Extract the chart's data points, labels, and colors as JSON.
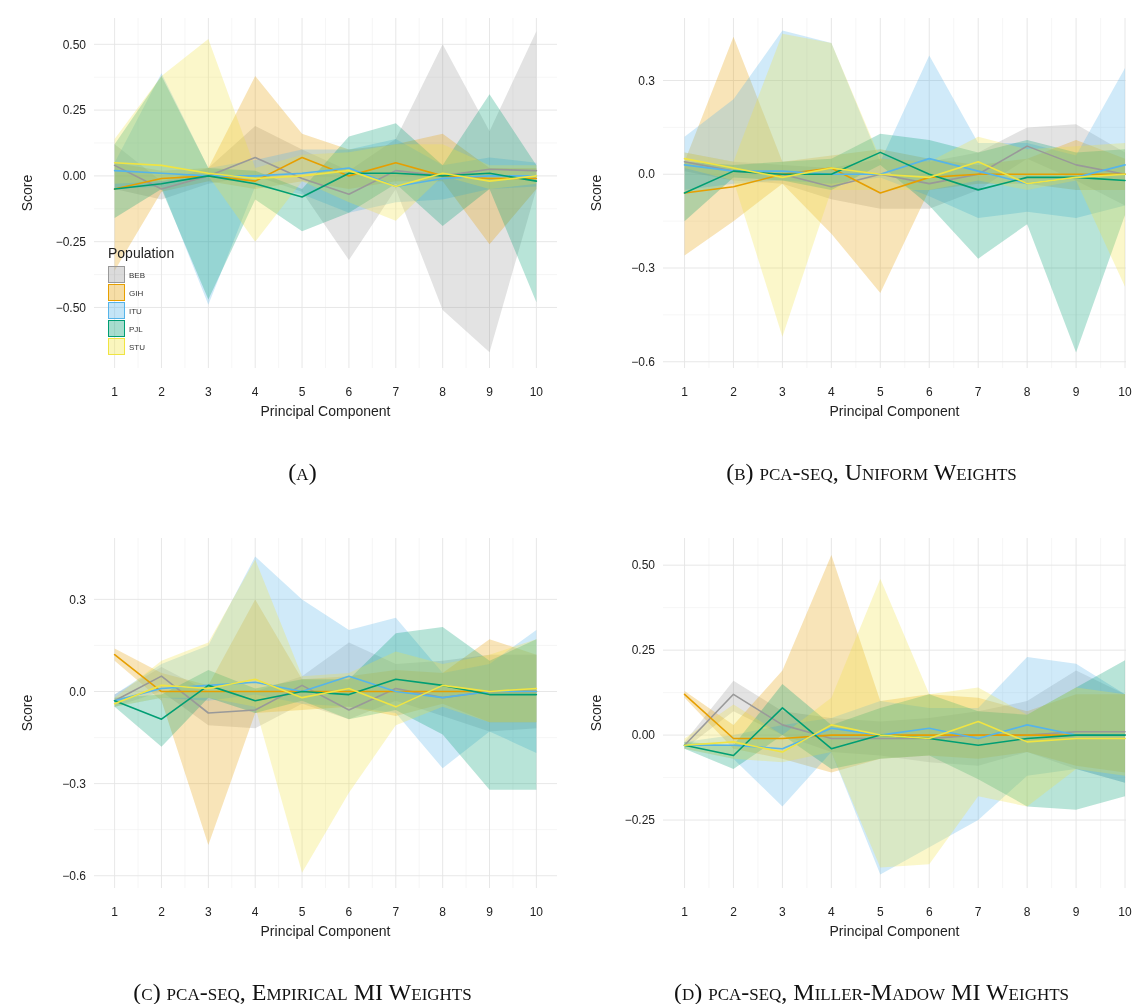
{
  "chart_data": [
    {
      "type": "line",
      "title": "(a)",
      "xlabel": "Principal Component",
      "ylabel": "Score",
      "legend_title": "Population",
      "legend": "bottom left",
      "grid": true,
      "x": [
        1,
        2,
        3,
        4,
        5,
        6,
        7,
        8,
        9,
        10
      ],
      "xlim": [
        0.56,
        10.44
      ],
      "xticks": [
        1,
        2,
        3,
        4,
        5,
        6,
        7,
        8,
        9,
        10
      ],
      "ylim": [
        -0.73,
        0.6
      ],
      "yticks": [
        {
          "value": -0.5,
          "label": "−0.50"
        },
        {
          "value": -0.25,
          "label": "−0.25"
        },
        {
          "value": 0,
          "label": "0.00"
        },
        {
          "value": 0.25,
          "label": "0.25"
        },
        {
          "value": 0.5,
          "label": "0.50"
        }
      ],
      "series": [
        {
          "name": "BEB",
          "color": "#999999",
          "values": [
            0.04,
            -0.05,
            0.0,
            0.07,
            -0.01,
            -0.07,
            0.02,
            0.0,
            0.025,
            0.02
          ],
          "lower": [
            -0.05,
            -0.09,
            -0.03,
            0.0,
            -0.06,
            -0.32,
            -0.05,
            -0.51,
            -0.67,
            -0.05
          ],
          "upper": [
            0.12,
            -0.02,
            0.03,
            0.19,
            0.1,
            0.02,
            0.14,
            0.5,
            0.17,
            0.55
          ]
        },
        {
          "name": "GIH",
          "color": "#e69f00",
          "values": [
            -0.05,
            -0.01,
            0.0,
            -0.02,
            0.07,
            0.0,
            0.05,
            0.0,
            -0.01,
            -0.01
          ],
          "lower": [
            -0.36,
            -0.06,
            -0.02,
            -0.05,
            -0.02,
            -0.05,
            -0.02,
            -0.02,
            -0.26,
            -0.05
          ],
          "upper": [
            0.05,
            0.02,
            0.03,
            0.38,
            0.16,
            0.1,
            0.12,
            0.16,
            0.03,
            0.03
          ]
        },
        {
          "name": "ITU",
          "color": "#56b4e9",
          "values": [
            0.02,
            0.01,
            0.0,
            0.0,
            0.01,
            0.03,
            -0.04,
            -0.01,
            0.0,
            0.0
          ],
          "lower": [
            -0.05,
            -0.04,
            -0.49,
            -0.04,
            -0.07,
            -0.14,
            -0.1,
            -0.09,
            -0.05,
            -0.04
          ],
          "upper": [
            0.05,
            0.39,
            0.03,
            0.06,
            0.1,
            0.1,
            0.14,
            0.04,
            0.07,
            0.05
          ]
        },
        {
          "name": "PJL",
          "color": "#009e73",
          "values": [
            -0.05,
            -0.03,
            0.0,
            -0.03,
            -0.08,
            0.01,
            0.01,
            0.0,
            0.01,
            -0.02
          ],
          "lower": [
            -0.16,
            -0.05,
            -0.47,
            -0.09,
            -0.21,
            -0.14,
            -0.03,
            -0.19,
            -0.05,
            -0.48
          ],
          "upper": [
            0.12,
            0.38,
            0.03,
            0.02,
            -0.05,
            0.15,
            0.2,
            0.04,
            0.31,
            0.04
          ]
        },
        {
          "name": "STU",
          "color": "#f0e442",
          "values": [
            0.05,
            0.04,
            0.01,
            -0.01,
            0.0,
            0.02,
            -0.04,
            0.01,
            -0.02,
            0.0
          ],
          "lower": [
            -0.03,
            -0.02,
            0.0,
            -0.25,
            -0.02,
            -0.1,
            -0.17,
            0.0,
            -0.05,
            -0.03
          ],
          "upper": [
            0.14,
            0.38,
            0.52,
            0.03,
            0.08,
            0.09,
            0.12,
            0.12,
            0.04,
            0.04
          ]
        }
      ]
    },
    {
      "type": "line",
      "title": "(b) pca-seq, Uniform Weights",
      "xlabel": "Principal Component",
      "ylabel": "Score",
      "grid": true,
      "x": [
        1,
        2,
        3,
        4,
        5,
        6,
        7,
        8,
        9,
        10
      ],
      "xlim": [
        0.56,
        10.02
      ],
      "xticks": [
        1,
        2,
        3,
        4,
        5,
        6,
        7,
        8,
        9,
        10
      ],
      "ylim": [
        -0.62,
        0.5
      ],
      "yticks": [
        {
          "value": -0.6,
          "label": "−0.6"
        },
        {
          "value": -0.3,
          "label": "−0.3"
        },
        {
          "value": 0,
          "label": "0.0"
        },
        0.3
      ],
      "series": [
        {
          "color": "#999999",
          "values": [
            0.04,
            0.01,
            0.0,
            -0.04,
            0.0,
            -0.03,
            0.0,
            0.09,
            0.03,
            0.0
          ],
          "lower": [
            0.01,
            -0.02,
            -0.03,
            -0.08,
            -0.11,
            -0.11,
            -0.05,
            0.05,
            -0.02,
            -0.1
          ],
          "upper": [
            0.07,
            0.04,
            0.03,
            0.02,
            0.05,
            0.04,
            0.07,
            0.15,
            0.16,
            0.07
          ]
        },
        {
          "color": "#e69f00",
          "values": [
            -0.06,
            -0.04,
            0.0,
            0.02,
            -0.06,
            -0.01,
            0.0,
            0.0,
            0.0,
            0.0
          ],
          "lower": [
            -0.26,
            -0.15,
            -0.03,
            -0.19,
            -0.38,
            -0.05,
            -0.03,
            -0.03,
            -0.05,
            -0.05
          ],
          "upper": [
            0.04,
            0.44,
            0.04,
            0.06,
            0.08,
            0.05,
            0.03,
            0.05,
            0.11,
            0.05
          ]
        },
        {
          "color": "#56b4e9",
          "values": [
            0.03,
            0.01,
            0.01,
            0.0,
            0.0,
            0.05,
            0.01,
            -0.03,
            -0.01,
            0.03
          ],
          "lower": [
            -0.05,
            -0.03,
            -0.02,
            -0.03,
            -0.01,
            -0.07,
            -0.14,
            -0.12,
            -0.14,
            -0.1
          ],
          "upper": [
            0.12,
            0.24,
            0.46,
            0.42,
            0.04,
            0.38,
            0.1,
            0.1,
            0.06,
            0.34
          ]
        },
        {
          "color": "#009e73",
          "values": [
            -0.06,
            0.01,
            0.0,
            0.0,
            0.07,
            0.0,
            -0.05,
            -0.01,
            -0.01,
            -0.02
          ],
          "lower": [
            -0.15,
            -0.01,
            -0.02,
            -0.05,
            0.03,
            -0.1,
            -0.27,
            -0.16,
            -0.57,
            -0.13
          ],
          "upper": [
            0.04,
            0.03,
            0.04,
            0.05,
            0.13,
            0.11,
            0.07,
            0.11,
            0.07,
            0.08
          ]
        },
        {
          "color": "#f0e442",
          "values": [
            0.05,
            0.02,
            -0.01,
            0.02,
            0.0,
            -0.01,
            0.04,
            -0.03,
            -0.01,
            0.0
          ],
          "lower": [
            0.02,
            -0.02,
            -0.52,
            -0.05,
            -0.05,
            -0.05,
            -0.02,
            -0.05,
            -0.02,
            -0.36
          ],
          "upper": [
            0.07,
            0.04,
            0.45,
            0.42,
            0.05,
            0.04,
            0.12,
            0.08,
            0.09,
            0.1
          ]
        }
      ]
    },
    {
      "type": "line",
      "title": "(c) pca-seq, Empirical MI Weights",
      "xlabel": "Principal Component",
      "ylabel": "Score",
      "grid": true,
      "x": [
        1,
        2,
        3,
        4,
        5,
        6,
        7,
        8,
        9,
        10
      ],
      "xlim": [
        0.56,
        10.44
      ],
      "xticks": [
        1,
        2,
        3,
        4,
        5,
        6,
        7,
        8,
        9,
        10
      ],
      "ylim": [
        -0.64,
        0.5
      ],
      "yticks": [
        {
          "value": -0.6,
          "label": "−0.6"
        },
        {
          "value": -0.3,
          "label": "−0.3"
        },
        {
          "value": 0,
          "label": "0.0"
        },
        0.3
      ],
      "series": [
        {
          "color": "#999999",
          "values": [
            -0.03,
            0.05,
            -0.07,
            -0.06,
            0.02,
            -0.06,
            0.01,
            -0.02,
            0.0,
            0.0
          ],
          "lower": [
            -0.05,
            0.0,
            -0.11,
            -0.12,
            -0.04,
            -0.09,
            -0.03,
            -0.08,
            -0.13,
            -0.12
          ],
          "upper": [
            -0.01,
            0.08,
            0.0,
            0.0,
            0.05,
            0.16,
            0.09,
            0.1,
            0.12,
            0.12
          ]
        },
        {
          "color": "#e69f00",
          "values": [
            0.12,
            0.0,
            0.0,
            0.0,
            0.0,
            0.0,
            0.0,
            0.0,
            0.0,
            0.0
          ],
          "lower": [
            0.1,
            -0.03,
            -0.5,
            -0.07,
            -0.06,
            -0.05,
            -0.08,
            -0.04,
            -0.1,
            -0.1
          ],
          "upper": [
            0.14,
            0.06,
            0.02,
            0.3,
            0.04,
            0.05,
            0.07,
            0.06,
            0.17,
            0.12
          ]
        },
        {
          "color": "#56b4e9",
          "values": [
            -0.03,
            0.01,
            0.02,
            0.03,
            0.0,
            0.05,
            0.0,
            -0.02,
            0.0,
            0.0
          ],
          "lower": [
            -0.05,
            -0.02,
            -0.03,
            -0.01,
            -0.04,
            -0.05,
            -0.07,
            -0.25,
            -0.13,
            -0.2
          ],
          "upper": [
            -0.01,
            0.09,
            0.15,
            0.44,
            0.3,
            0.2,
            0.24,
            0.06,
            0.09,
            0.2
          ]
        },
        {
          "color": "#009e73",
          "values": [
            -0.03,
            -0.09,
            0.02,
            -0.03,
            0.0,
            -0.01,
            0.04,
            0.02,
            -0.01,
            -0.01
          ],
          "lower": [
            -0.05,
            -0.18,
            -0.02,
            -0.07,
            -0.03,
            -0.09,
            -0.06,
            -0.14,
            -0.32,
            -0.32
          ],
          "upper": [
            -0.02,
            -0.01,
            0.07,
            0.01,
            0.04,
            0.04,
            0.19,
            0.21,
            0.1,
            0.17
          ]
        },
        {
          "color": "#f0e442",
          "values": [
            -0.04,
            0.02,
            0.01,
            0.04,
            -0.02,
            0.01,
            -0.05,
            0.02,
            0.0,
            0.01
          ],
          "lower": [
            -0.05,
            -0.02,
            -0.02,
            -0.05,
            -0.59,
            -0.33,
            -0.11,
            -0.05,
            -0.1,
            -0.1
          ],
          "upper": [
            -0.02,
            0.1,
            0.16,
            0.43,
            0.05,
            0.06,
            0.13,
            0.09,
            0.12,
            0.17
          ]
        }
      ]
    },
    {
      "type": "line",
      "title": "(d) pca-seq, Miller-Madow MI Weights",
      "xlabel": "Principal Component",
      "ylabel": "Score",
      "grid": true,
      "x": [
        1,
        2,
        3,
        4,
        5,
        6,
        7,
        8,
        9,
        10
      ],
      "xlim": [
        0.56,
        10.02
      ],
      "xticks": [
        1,
        2,
        3,
        4,
        5,
        6,
        7,
        8,
        9,
        10
      ],
      "ylim": [
        -0.45,
        0.58
      ],
      "yticks": [
        {
          "value": -0.25,
          "label": "−0.25"
        },
        {
          "value": 0,
          "label": "0.00"
        },
        {
          "value": 0.25,
          "label": "0.25"
        },
        {
          "value": 0.5,
          "label": "0.50"
        }
      ],
      "series": [
        {
          "color": "#999999",
          "values": [
            -0.03,
            0.12,
            0.03,
            -0.01,
            -0.01,
            -0.01,
            0.0,
            0.0,
            0.01,
            0.01
          ],
          "lower": [
            -0.04,
            0.07,
            0.0,
            -0.05,
            -0.06,
            -0.08,
            -0.09,
            -0.05,
            -0.1,
            -0.14
          ],
          "upper": [
            -0.02,
            0.16,
            0.07,
            0.05,
            0.04,
            0.05,
            0.07,
            0.1,
            0.19,
            0.12
          ]
        },
        {
          "color": "#e69f00",
          "values": [
            0.12,
            -0.01,
            -0.01,
            0.0,
            0.0,
            0.0,
            0.0,
            0.0,
            0.0,
            0.0
          ],
          "lower": [
            0.11,
            -0.04,
            -0.07,
            -0.11,
            -0.07,
            -0.06,
            -0.07,
            -0.05,
            -0.09,
            -0.11
          ],
          "upper": [
            0.13,
            0.03,
            0.19,
            0.53,
            0.1,
            0.12,
            0.11,
            0.07,
            0.12,
            0.12
          ]
        },
        {
          "color": "#56b4e9",
          "values": [
            -0.03,
            -0.03,
            -0.04,
            0.02,
            0.0,
            0.02,
            -0.01,
            0.03,
            0.0,
            0.0
          ],
          "lower": [
            -0.04,
            -0.07,
            -0.21,
            -0.05,
            -0.41,
            -0.33,
            -0.25,
            -0.12,
            -0.1,
            -0.14
          ],
          "upper": [
            -0.02,
            0.0,
            0.03,
            0.05,
            0.1,
            0.08,
            0.08,
            0.23,
            0.21,
            0.12
          ]
        },
        {
          "color": "#009e73",
          "values": [
            -0.03,
            -0.06,
            0.08,
            -0.04,
            0.0,
            -0.01,
            -0.03,
            -0.01,
            0.0,
            0.0
          ],
          "lower": [
            -0.04,
            -0.1,
            0.0,
            -0.1,
            -0.07,
            -0.06,
            -0.13,
            -0.21,
            -0.22,
            -0.18
          ],
          "upper": [
            -0.02,
            -0.03,
            0.15,
            0.03,
            0.08,
            0.12,
            0.07,
            0.06,
            0.14,
            0.22
          ]
        },
        {
          "color": "#f0e442",
          "values": [
            -0.03,
            -0.02,
            -0.05,
            0.03,
            0.0,
            -0.01,
            0.04,
            -0.02,
            -0.01,
            -0.01
          ],
          "lower": [
            -0.04,
            -0.07,
            -0.08,
            -0.05,
            -0.39,
            -0.38,
            -0.18,
            -0.21,
            -0.1,
            -0.12
          ],
          "upper": [
            -0.01,
            0.09,
            0.0,
            0.11,
            0.46,
            0.12,
            0.14,
            0.06,
            0.14,
            0.12
          ]
        }
      ]
    }
  ]
}
